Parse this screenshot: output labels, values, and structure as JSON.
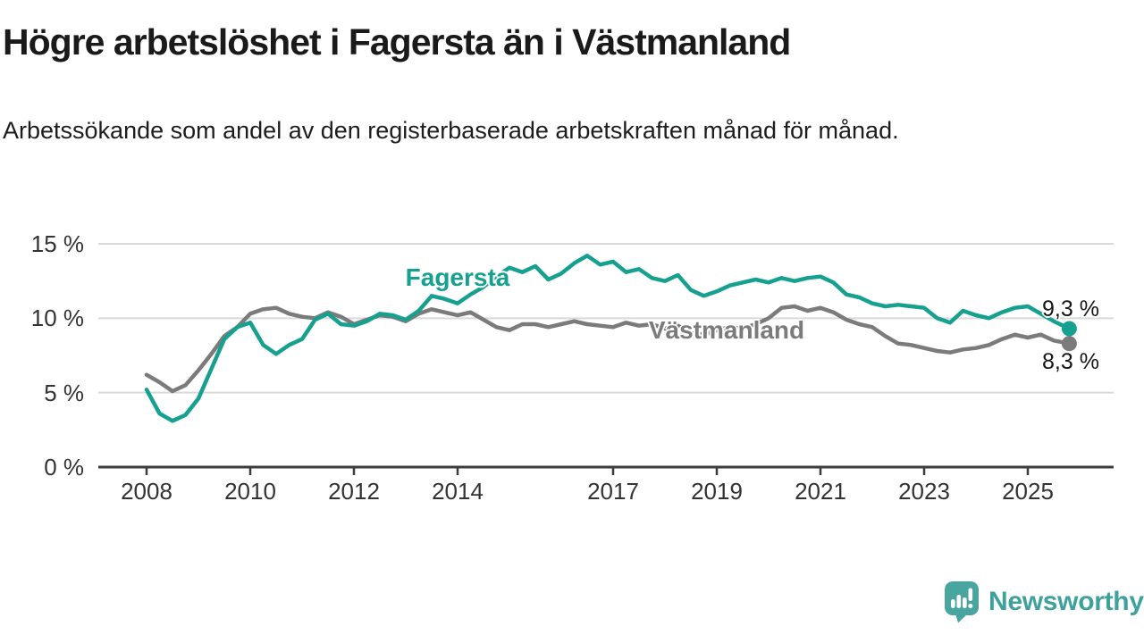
{
  "header": {
    "title": "Högre arbetslöshet i Fagersta än i Västmanland",
    "subtitle": "Arbetssökande som andel av den registerbaserade arbetskraften månad för månad."
  },
  "chart_data": {
    "type": "line",
    "unit": "%",
    "x_axis": {
      "ticks": [
        2008,
        2010,
        2012,
        2014,
        2017,
        2019,
        2021,
        2023,
        2025
      ],
      "tick_labels": [
        "2008",
        "2010",
        "2012",
        "2014",
        "2017",
        "2019",
        "2021",
        "2023",
        "2025"
      ],
      "range": [
        2007.1,
        2026.7
      ]
    },
    "y_axis": {
      "ticks": [
        0,
        5,
        10,
        15
      ],
      "tick_labels": [
        "0 %",
        "5 %",
        "10 %",
        "15 %"
      ],
      "range": [
        0,
        15
      ],
      "grid": true
    },
    "series": [
      {
        "name": "Fagersta",
        "color": "#16a08f",
        "end_label": "9,3 %",
        "end_value": 9.3,
        "points": [
          [
            2008.0,
            5.2
          ],
          [
            2008.25,
            3.6
          ],
          [
            2008.5,
            3.1
          ],
          [
            2008.75,
            3.5
          ],
          [
            2009.0,
            4.6
          ],
          [
            2009.25,
            6.6
          ],
          [
            2009.5,
            8.6
          ],
          [
            2009.75,
            9.4
          ],
          [
            2010.0,
            9.7
          ],
          [
            2010.25,
            8.2
          ],
          [
            2010.5,
            7.6
          ],
          [
            2010.75,
            8.2
          ],
          [
            2011.0,
            8.6
          ],
          [
            2011.25,
            9.9
          ],
          [
            2011.5,
            10.3
          ],
          [
            2011.75,
            9.6
          ],
          [
            2012.0,
            9.5
          ],
          [
            2012.25,
            9.8
          ],
          [
            2012.5,
            10.3
          ],
          [
            2012.75,
            10.2
          ],
          [
            2013.0,
            9.9
          ],
          [
            2013.25,
            10.5
          ],
          [
            2013.5,
            11.5
          ],
          [
            2013.75,
            11.3
          ],
          [
            2014.0,
            11.0
          ],
          [
            2014.25,
            11.6
          ],
          [
            2014.5,
            12.1
          ],
          [
            2014.75,
            12.8
          ],
          [
            2015.0,
            13.4
          ],
          [
            2015.25,
            13.1
          ],
          [
            2015.5,
            13.5
          ],
          [
            2015.75,
            12.6
          ],
          [
            2016.0,
            13.0
          ],
          [
            2016.25,
            13.7
          ],
          [
            2016.5,
            14.2
          ],
          [
            2016.75,
            13.6
          ],
          [
            2017.0,
            13.8
          ],
          [
            2017.25,
            13.1
          ],
          [
            2017.5,
            13.3
          ],
          [
            2017.75,
            12.7
          ],
          [
            2018.0,
            12.5
          ],
          [
            2018.25,
            12.9
          ],
          [
            2018.5,
            11.9
          ],
          [
            2018.75,
            11.5
          ],
          [
            2019.0,
            11.8
          ],
          [
            2019.25,
            12.2
          ],
          [
            2019.5,
            12.4
          ],
          [
            2019.75,
            12.6
          ],
          [
            2020.0,
            12.4
          ],
          [
            2020.25,
            12.7
          ],
          [
            2020.5,
            12.5
          ],
          [
            2020.75,
            12.7
          ],
          [
            2021.0,
            12.8
          ],
          [
            2021.25,
            12.4
          ],
          [
            2021.5,
            11.6
          ],
          [
            2021.75,
            11.4
          ],
          [
            2022.0,
            11.0
          ],
          [
            2022.25,
            10.8
          ],
          [
            2022.5,
            10.9
          ],
          [
            2022.75,
            10.8
          ],
          [
            2023.0,
            10.7
          ],
          [
            2023.25,
            10.0
          ],
          [
            2023.5,
            9.7
          ],
          [
            2023.75,
            10.5
          ],
          [
            2024.0,
            10.2
          ],
          [
            2024.25,
            10.0
          ],
          [
            2024.5,
            10.4
          ],
          [
            2024.75,
            10.7
          ],
          [
            2025.0,
            10.8
          ],
          [
            2025.25,
            10.3
          ],
          [
            2025.5,
            9.8
          ],
          [
            2025.8,
            9.3
          ]
        ]
      },
      {
        "name": "Västmanland",
        "color": "#7b7b7b",
        "end_label": "8,3 %",
        "end_value": 8.3,
        "points": [
          [
            2008.0,
            6.2
          ],
          [
            2008.25,
            5.7
          ],
          [
            2008.5,
            5.1
          ],
          [
            2008.75,
            5.5
          ],
          [
            2009.0,
            6.5
          ],
          [
            2009.25,
            7.6
          ],
          [
            2009.5,
            8.8
          ],
          [
            2009.75,
            9.4
          ],
          [
            2010.0,
            10.3
          ],
          [
            2010.25,
            10.6
          ],
          [
            2010.5,
            10.7
          ],
          [
            2010.75,
            10.3
          ],
          [
            2011.0,
            10.1
          ],
          [
            2011.25,
            10.0
          ],
          [
            2011.5,
            10.4
          ],
          [
            2011.75,
            10.1
          ],
          [
            2012.0,
            9.6
          ],
          [
            2012.25,
            9.9
          ],
          [
            2012.5,
            10.2
          ],
          [
            2012.75,
            10.1
          ],
          [
            2013.0,
            9.8
          ],
          [
            2013.25,
            10.3
          ],
          [
            2013.5,
            10.6
          ],
          [
            2013.75,
            10.4
          ],
          [
            2014.0,
            10.2
          ],
          [
            2014.25,
            10.4
          ],
          [
            2014.5,
            9.9
          ],
          [
            2014.75,
            9.4
          ],
          [
            2015.0,
            9.2
          ],
          [
            2015.25,
            9.6
          ],
          [
            2015.5,
            9.6
          ],
          [
            2015.75,
            9.4
          ],
          [
            2016.0,
            9.6
          ],
          [
            2016.25,
            9.8
          ],
          [
            2016.5,
            9.6
          ],
          [
            2016.75,
            9.5
          ],
          [
            2017.0,
            9.4
          ],
          [
            2017.25,
            9.7
          ],
          [
            2017.5,
            9.5
          ],
          [
            2017.75,
            9.6
          ],
          [
            2018.0,
            9.3
          ],
          [
            2018.25,
            9.5
          ],
          [
            2018.5,
            9.0
          ],
          [
            2018.75,
            8.9
          ],
          [
            2019.0,
            9.2
          ],
          [
            2019.25,
            9.4
          ],
          [
            2019.5,
            9.3
          ],
          [
            2019.75,
            9.6
          ],
          [
            2020.0,
            10.0
          ],
          [
            2020.25,
            10.7
          ],
          [
            2020.5,
            10.8
          ],
          [
            2020.75,
            10.5
          ],
          [
            2021.0,
            10.7
          ],
          [
            2021.25,
            10.4
          ],
          [
            2021.5,
            9.9
          ],
          [
            2021.75,
            9.6
          ],
          [
            2022.0,
            9.4
          ],
          [
            2022.25,
            8.8
          ],
          [
            2022.5,
            8.3
          ],
          [
            2022.75,
            8.2
          ],
          [
            2023.0,
            8.0
          ],
          [
            2023.25,
            7.8
          ],
          [
            2023.5,
            7.7
          ],
          [
            2023.75,
            7.9
          ],
          [
            2024.0,
            8.0
          ],
          [
            2024.25,
            8.2
          ],
          [
            2024.5,
            8.6
          ],
          [
            2024.75,
            8.9
          ],
          [
            2025.0,
            8.7
          ],
          [
            2025.25,
            8.9
          ],
          [
            2025.5,
            8.5
          ],
          [
            2025.8,
            8.3
          ]
        ]
      }
    ],
    "colors": {
      "grid": "#d9d9d9",
      "axis": "#3c3c3c",
      "tick_text": "#333333"
    }
  },
  "footer": {
    "logo_text": "Newsworthy",
    "brand_color": "#48a5a0"
  }
}
